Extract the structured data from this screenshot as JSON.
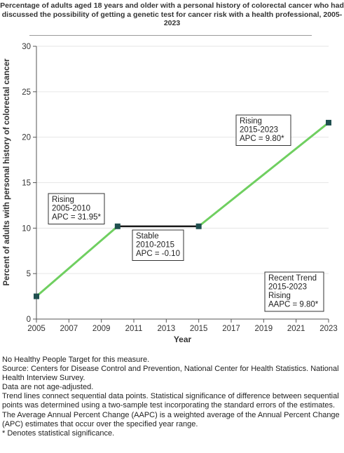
{
  "title": "Percentage of adults aged 18 years and older with a personal history of colorectal cancer who had discussed the possibility of getting a genetic test for cancer risk with a health professional, 2005-2023",
  "colors": {
    "rising_line": "#6fcf60",
    "stable_line": "#1c1c1c",
    "marker": "#1f4f4f",
    "axis": "#555555",
    "grid": "#e6e6e6"
  },
  "chart_data": {
    "type": "line",
    "title": "Percentage of adults aged 18 years and older with a personal history of colorectal cancer who had discussed the possibility of getting a genetic test for cancer risk with a health professional, 2005-2023",
    "xlabel": "Year",
    "ylabel": "Percent of adults with personal history of colorectal cancer",
    "xlim": [
      2005,
      2023
    ],
    "ylim": [
      0,
      30
    ],
    "xticks": [
      2005,
      2007,
      2009,
      2011,
      2013,
      2015,
      2017,
      2019,
      2021,
      2023
    ],
    "yticks": [
      0,
      5,
      10,
      15,
      20,
      25,
      30
    ],
    "points": [
      {
        "x": 2005,
        "y": 2.5
      },
      {
        "x": 2010,
        "y": 10.2
      },
      {
        "x": 2015,
        "y": 10.2
      },
      {
        "x": 2023,
        "y": 21.6
      }
    ],
    "segments": [
      {
        "from": 2005,
        "to": 2010,
        "trend": "rising"
      },
      {
        "from": 2010,
        "to": 2015,
        "trend": "stable"
      },
      {
        "from": 2015,
        "to": 2023,
        "trend": "rising"
      }
    ],
    "annotations": [
      {
        "lines": [
          "Rising",
          "2005-2010",
          "APC = 31.95*"
        ]
      },
      {
        "lines": [
          "Stable",
          "2010-2015",
          "APC = -0.10"
        ]
      },
      {
        "lines": [
          "Rising",
          "2015-2023",
          "APC =  9.80*"
        ]
      },
      {
        "lines": [
          "Recent Trend",
          "2015-2023",
          "Rising",
          "AAPC =  9.80*"
        ]
      }
    ]
  },
  "footnotes": [
    "No Healthy People Target for this measure.",
    "Source: Centers for Disease Control and Prevention, National Center for Health Statistics. National Health Interview Survey.",
    "Data are not age-adjusted.",
    "Trend lines connect sequential data points. Statistical significance of difference between sequential points was determined using a two-sample test incorporating the standard errors of the estimates.",
    "The Average Annual Percent Change (AAPC) is a weighted average of the Annual Percent Change (APC) estimates that occur over the specified year range.",
    "* Denotes statistical significance."
  ]
}
